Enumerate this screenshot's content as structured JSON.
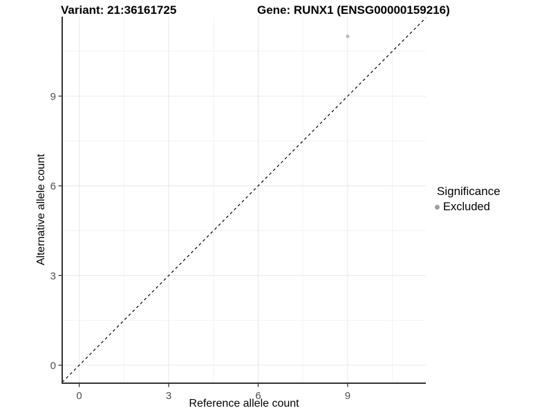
{
  "chart_data": {
    "type": "scatter",
    "title_left": "Variant: 21:36161725",
    "title_right": "Gene: RUNX1 (ENSG00000159216)",
    "xlabel": "Reference allele count",
    "ylabel": "Alternative allele count",
    "xlim": [
      -0.57,
      11.62
    ],
    "ylim": [
      -0.6,
      11.66
    ],
    "x_ticks": [
      0,
      3,
      6,
      9
    ],
    "y_ticks": [
      0,
      3,
      6,
      9
    ],
    "x_minor_ticks": [
      1.5,
      4.5,
      7.5,
      10.5
    ],
    "y_minor_ticks": [
      1.5,
      4.5,
      7.5,
      10.5
    ],
    "grid": {
      "show": true,
      "major_color": "#e8e8e8",
      "minor_color": "#f3f3f3"
    },
    "axis_line_color": "#333333",
    "tick_label_color": "#4d4d4d",
    "identity_line": {
      "style": "dashed",
      "slope": 1,
      "intercept": 0,
      "color": "#000000"
    },
    "points": [
      {
        "x": 9,
        "y": 11,
        "significance": "Excluded",
        "color": "#bdbdbd"
      }
    ],
    "legend": {
      "title": "Significance",
      "position": "right",
      "entries": [
        {
          "label": "Excluded",
          "marker": "circle",
          "color": "#9e9e9e"
        }
      ]
    }
  }
}
